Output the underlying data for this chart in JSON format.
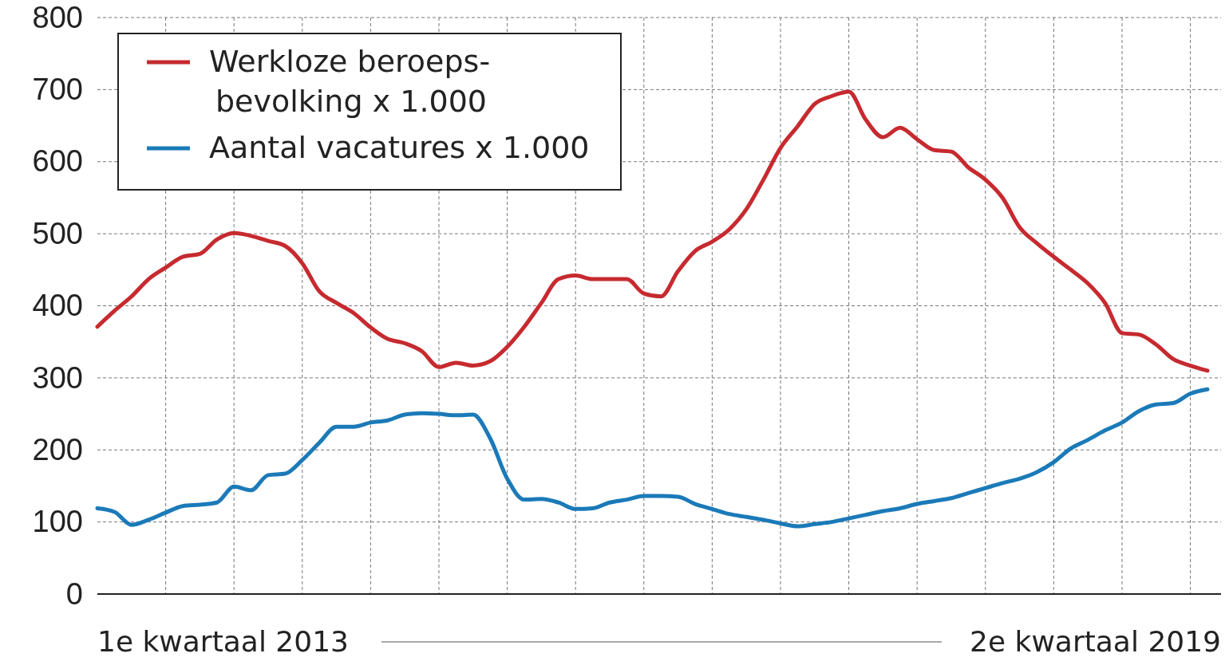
{
  "chart_data": {
    "type": "line",
    "annotations": [
      "1e kwartaal 2013",
      "2e kwartaal 2019"
    ],
    "categories": [
      null,
      null,
      null,
      null,
      null,
      null,
      null,
      null,
      null,
      null,
      null,
      null,
      null,
      null,
      null,
      null,
      null,
      null,
      null,
      null,
      null,
      null,
      null,
      null,
      null,
      null,
      null,
      null,
      null,
      null,
      null,
      null,
      null,
      null,
      null,
      null,
      null,
      null,
      null,
      null,
      null,
      null,
      null,
      null,
      null,
      null,
      null,
      null,
      null,
      null,
      null,
      null,
      null,
      null,
      null,
      null,
      null,
      null,
      null,
      null,
      null,
      null,
      null,
      null,
      null,
      null
    ],
    "series": [
      {
        "name": "Werkloze beroeps-bevolking x 1.000",
        "color": "#c62a2f",
        "values": [
          371,
          393,
          413,
          437,
          453,
          468,
          472,
          492,
          501,
          497,
          490,
          483,
          459,
          420,
          404,
          390,
          370,
          354,
          348,
          337,
          315,
          321,
          317,
          323,
          343,
          371,
          404,
          437,
          442,
          437,
          437,
          437,
          417,
          413,
          448,
          476,
          489,
          506,
          534,
          575,
          619,
          649,
          680,
          691,
          697,
          658,
          634,
          647,
          631,
          616,
          614,
          592,
          575,
          550,
          509,
          487,
          468,
          450,
          431,
          404,
          362,
          360,
          346,
          326,
          317,
          310
        ]
      },
      {
        "name": "Aantal vacatures x 1.000",
        "color": "#1b7ab8",
        "values": [
          119,
          114,
          96,
          103,
          113,
          122,
          124,
          127,
          149,
          144,
          165,
          167,
          186,
          210,
          232,
          232,
          238,
          241,
          249,
          251,
          250,
          248,
          249,
          216,
          160,
          131,
          132,
          127,
          118,
          119,
          127,
          131,
          136,
          136,
          135,
          125,
          118,
          111,
          107,
          103,
          98,
          94,
          97,
          100,
          105,
          110,
          115,
          119,
          125,
          129,
          133,
          140,
          147,
          154,
          160,
          169,
          183,
          202,
          214,
          227,
          238,
          254,
          263,
          265,
          278,
          284
        ]
      }
    ],
    "ylim": [
      0,
      800
    ],
    "yticks": [
      0,
      100,
      200,
      300,
      400,
      500,
      600,
      700,
      800
    ],
    "grid": true,
    "legend": "top left",
    "line_style": "solid",
    "marker": "none"
  }
}
